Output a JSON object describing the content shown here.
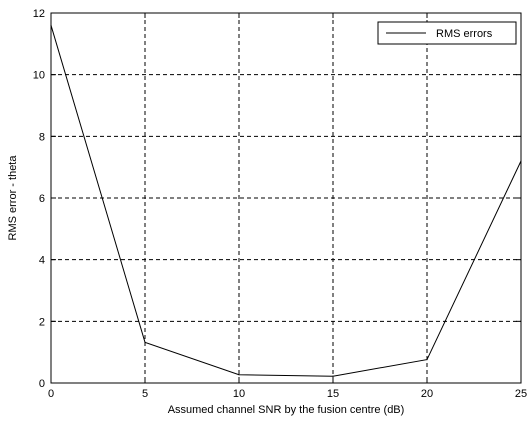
{
  "chart_data": {
    "type": "line",
    "title": "",
    "xlabel": "Assumed channel SNR by the fusion centre (dB)",
    "ylabel": "RMS error - theta",
    "xlim": [
      0,
      25
    ],
    "ylim": [
      0,
      12
    ],
    "xticks": [
      0,
      5,
      10,
      15,
      20,
      25
    ],
    "yticks": [
      0,
      2,
      4,
      6,
      8,
      10,
      12
    ],
    "grid": true,
    "grid_style": "dashed",
    "legend_position": "top-right",
    "series": [
      {
        "name": "RMS errors",
        "color": "#000000",
        "x": [
          0,
          5,
          10,
          15,
          20,
          25
        ],
        "y": [
          11.6,
          1.32,
          0.27,
          0.22,
          0.76,
          7.2
        ]
      }
    ]
  }
}
